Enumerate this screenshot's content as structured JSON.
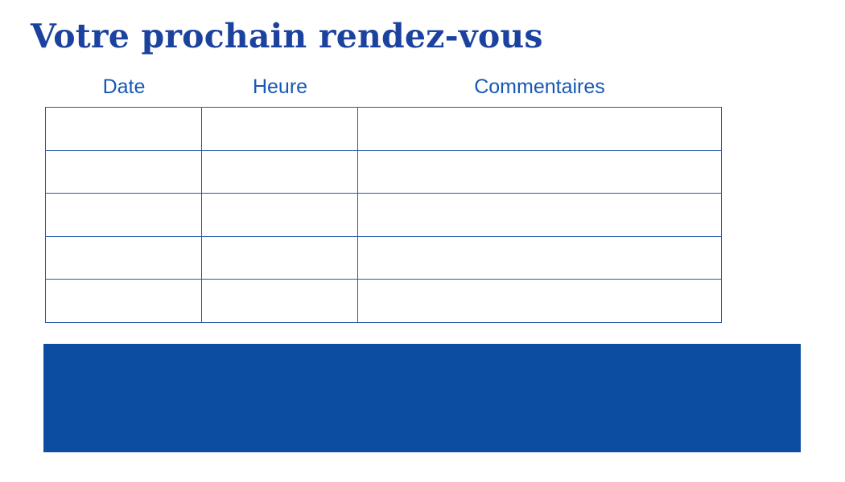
{
  "page": {
    "title": "Votre prochain rendez-vous"
  },
  "table": {
    "columns": [
      {
        "label": "Date"
      },
      {
        "label": "Heure"
      },
      {
        "label": "Commentaires"
      }
    ],
    "rows": [
      [
        "",
        "",
        ""
      ],
      [
        "",
        "",
        ""
      ],
      [
        "",
        "",
        ""
      ],
      [
        "",
        "",
        ""
      ],
      [
        "",
        "",
        ""
      ]
    ]
  },
  "colors": {
    "title_text": "#1a429e",
    "header_text": "#1658b4",
    "table_border": "#2457ac",
    "banner_fill": "#0c4da2",
    "background": "#ffffff"
  }
}
